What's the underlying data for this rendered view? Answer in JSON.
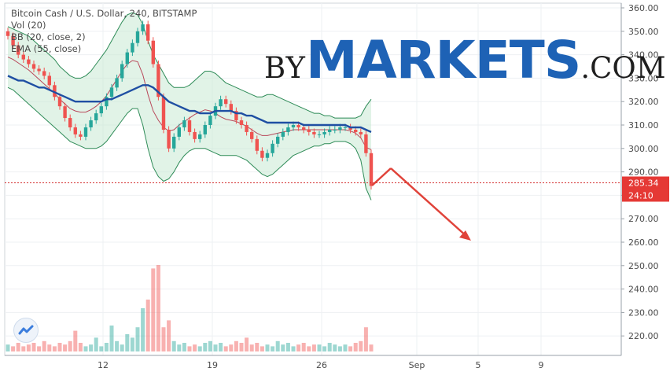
{
  "legend": {
    "symbol": "Bitcoin Cash / U.S. Dollar, 240, BITSTAMP",
    "vol": "Vol (20)",
    "bb": "BB (20, close, 2)",
    "ema": "EMA (55, close)"
  },
  "watermark": {
    "by": "BY",
    "main": "MARKETS",
    "com": ".COM"
  },
  "price_label": {
    "value": "285.34",
    "countdown": "24:10"
  },
  "colors": {
    "up": "#26a69a",
    "down": "#ef5350",
    "ema": "#1f4fa3",
    "band": "#2e8b57",
    "band_fill": "#c8ead3",
    "arrow": "#e0433a"
  },
  "chart_data": {
    "type": "candlestick",
    "title": "Bitcoin Cash / U.S. Dollar, 240, BITSTAMP",
    "ylim": [
      210,
      360
    ],
    "y_ticks": [
      "360.00",
      "350.00",
      "340.00",
      "330.00",
      "320.00",
      "310.00",
      "300.00",
      "290.00",
      "280.00",
      "270.00",
      "260.00",
      "250.00",
      "240.00",
      "230.00",
      "220.00"
    ],
    "x_ticks": [
      "12",
      "19",
      "26",
      "Sep",
      "5",
      "9"
    ],
    "last_price": 285.34,
    "candles_close": [
      348,
      344,
      340,
      338,
      336,
      334,
      333,
      331,
      327,
      322,
      318,
      313,
      309,
      306,
      305,
      309,
      312,
      315,
      318,
      322,
      326,
      330,
      336,
      341,
      345,
      350,
      353,
      346,
      336,
      322,
      308,
      300,
      305,
      309,
      312,
      307,
      304,
      306,
      310,
      314,
      318,
      321,
      319,
      316,
      312,
      310,
      307,
      304,
      299,
      296,
      298,
      302,
      305,
      307,
      309,
      310,
      309,
      308,
      307,
      306,
      306,
      307,
      308,
      308,
      309,
      309,
      308,
      307,
      306,
      298,
      284
    ],
    "ema_close": [
      331,
      330,
      329,
      329,
      328,
      327,
      326,
      326,
      325,
      324,
      323,
      322,
      321,
      320,
      320,
      320,
      320,
      320,
      320,
      321,
      321,
      322,
      323,
      324,
      325,
      326,
      327,
      327,
      326,
      324,
      322,
      320,
      319,
      318,
      317,
      316,
      316,
      315,
      315,
      315,
      316,
      316,
      316,
      316,
      315,
      315,
      314,
      314,
      313,
      312,
      311,
      311,
      311,
      311,
      311,
      311,
      311,
      310,
      310,
      310,
      310,
      310,
      310,
      310,
      310,
      310,
      309,
      309,
      309,
      308,
      307
    ],
    "bb_upper": [
      352,
      351,
      350,
      349,
      348,
      346,
      344,
      342,
      340,
      338,
      335,
      333,
      331,
      330,
      330,
      331,
      333,
      336,
      339,
      342,
      346,
      350,
      354,
      357,
      358,
      357,
      353,
      346,
      340,
      336,
      332,
      328,
      326,
      326,
      326,
      327,
      329,
      331,
      333,
      333,
      332,
      330,
      328,
      327,
      326,
      325,
      324,
      323,
      322,
      322,
      323,
      323,
      322,
      321,
      320,
      319,
      318,
      317,
      316,
      315,
      315,
      314,
      314,
      313,
      313,
      313,
      313,
      313,
      314,
      318,
      321
    ],
    "bb_lower": [
      326,
      325,
      323,
      321,
      319,
      317,
      315,
      313,
      311,
      309,
      307,
      305,
      303,
      302,
      301,
      300,
      300,
      300,
      301,
      303,
      306,
      309,
      312,
      315,
      317,
      317,
      310,
      300,
      292,
      288,
      286,
      287,
      290,
      294,
      297,
      299,
      300,
      300,
      300,
      299,
      298,
      297,
      297,
      297,
      297,
      296,
      295,
      293,
      291,
      289,
      288,
      289,
      291,
      293,
      295,
      297,
      298,
      299,
      300,
      301,
      301,
      302,
      302,
      303,
      303,
      303,
      302,
      300,
      295,
      283,
      278
    ],
    "volume": [
      4,
      3,
      5,
      3,
      4,
      5,
      3,
      6,
      4,
      3,
      5,
      4,
      6,
      12,
      5,
      3,
      4,
      8,
      3,
      5,
      15,
      6,
      4,
      10,
      8,
      14,
      25,
      30,
      48,
      50,
      14,
      18,
      6,
      4,
      5,
      3,
      4,
      3,
      5,
      6,
      4,
      5,
      3,
      4,
      6,
      5,
      8,
      4,
      5,
      3,
      4,
      3,
      6,
      4,
      5,
      3,
      4,
      5,
      3,
      4,
      4,
      3,
      5,
      4,
      3,
      4,
      3,
      5,
      6,
      14,
      4
    ]
  }
}
